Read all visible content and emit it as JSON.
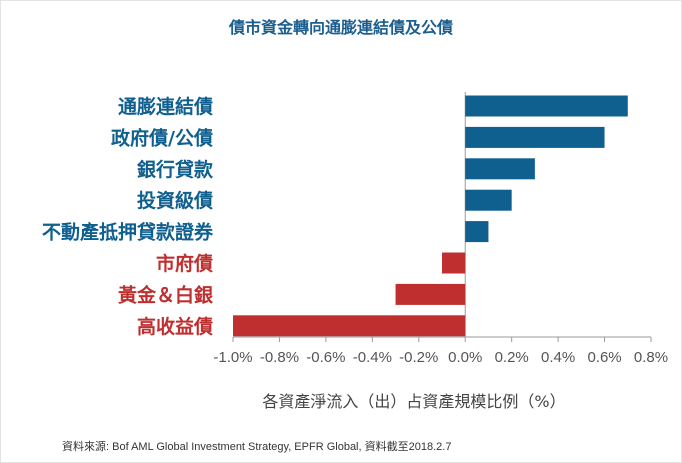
{
  "chart_data": {
    "type": "bar",
    "orientation": "horizontal",
    "title": "債市資金轉向通膨連結債及公債",
    "xlabel": "各資產淨流入（出）占資產規模比例（%）",
    "ylabel": "",
    "categories": [
      "通膨連結債",
      "政府債/公債",
      "銀行貸款",
      "投資級債",
      "不動產抵押貸款證券",
      "市府債",
      "黃金＆白銀",
      "高收益債"
    ],
    "values": [
      0.7,
      0.6,
      0.3,
      0.2,
      0.1,
      -0.1,
      -0.3,
      -1.0
    ],
    "xlim": [
      -1.0,
      0.8
    ],
    "xticks": [
      -1.0,
      -0.8,
      -0.6,
      -0.4,
      -0.2,
      0.0,
      0.2,
      0.4,
      0.6,
      0.8
    ],
    "xtick_labels": [
      "-1.0%",
      "-0.8%",
      "-0.6%",
      "-0.4%",
      "-0.2%",
      "0.0%",
      "0.2%",
      "0.4%",
      "0.6%",
      "0.8%"
    ],
    "grid": false,
    "colors": {
      "positive": "#0f5f8f",
      "negative": "#bf2f2f",
      "positive_label": "#0f5f8f",
      "negative_label": "#bf2f2f",
      "axis": "#9a9a9a",
      "tick_text": "#555555"
    }
  },
  "source_note": "資料來源: Bof AML Global Investment Strategy, EPFR Global, 資料截至2018.2.7"
}
